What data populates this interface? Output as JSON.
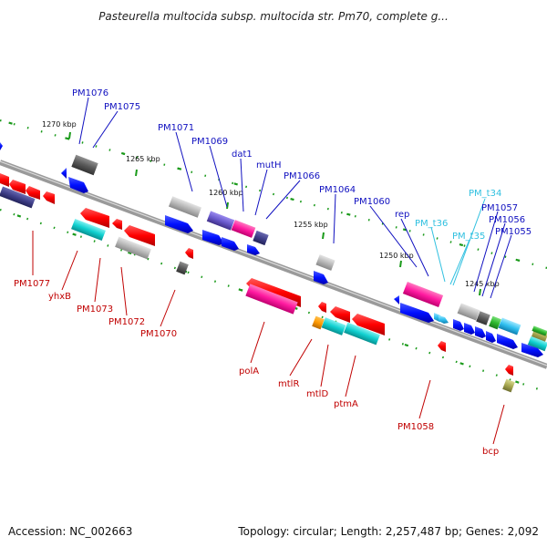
{
  "title": "Pasteurella multocida subsp. multocida str. Pm70, complete g...",
  "footer": {
    "accession": "Accession: NC_002663",
    "stats": "Topology: circular; Length: 2,257,487 bp; Genes: 2,092"
  },
  "colors": {
    "label_blue": "#1010c0",
    "label_red": "#c00000",
    "label_cyan": "#30c0e0",
    "backbone": "#9a9a9a"
  },
  "ticks": [
    {
      "label": "1270 kbp"
    },
    {
      "label": "1265 kbp"
    },
    {
      "label": "1260 kbp"
    },
    {
      "label": "1255 kbp"
    },
    {
      "label": "1250 kbp"
    },
    {
      "label": "1245 kbp"
    }
  ],
  "top_labels": [
    {
      "text": "PM1076",
      "color": "blue"
    },
    {
      "text": "PM1075",
      "color": "blue"
    },
    {
      "text": "PM1071",
      "color": "blue"
    },
    {
      "text": "PM1069",
      "color": "blue"
    },
    {
      "text": "dat1",
      "color": "blue"
    },
    {
      "text": "mutH",
      "color": "blue"
    },
    {
      "text": "PM1066",
      "color": "blue"
    },
    {
      "text": "PM1064",
      "color": "blue"
    },
    {
      "text": "PM1060",
      "color": "blue"
    },
    {
      "text": "rep",
      "color": "blue"
    },
    {
      "text": "PM_t36",
      "color": "cyan"
    },
    {
      "text": "PM_t35",
      "color": "cyan"
    },
    {
      "text": "PM_t34",
      "color": "cyan"
    },
    {
      "text": "PM1057",
      "color": "blue"
    },
    {
      "text": "PM1056",
      "color": "blue"
    },
    {
      "text": "PM1055",
      "color": "blue"
    }
  ],
  "bottom_labels": [
    {
      "text": "PM1077",
      "color": "red"
    },
    {
      "text": "yhxB",
      "color": "red"
    },
    {
      "text": "PM1073",
      "color": "red"
    },
    {
      "text": "PM1072",
      "color": "red"
    },
    {
      "text": "PM1070",
      "color": "red"
    },
    {
      "text": "polA",
      "color": "red"
    },
    {
      "text": "mtlR",
      "color": "red"
    },
    {
      "text": "mtlD",
      "color": "red"
    },
    {
      "text": "ptmA",
      "color": "red"
    },
    {
      "text": "PM1058",
      "color": "red"
    },
    {
      "text": "bcp",
      "color": "red"
    }
  ]
}
